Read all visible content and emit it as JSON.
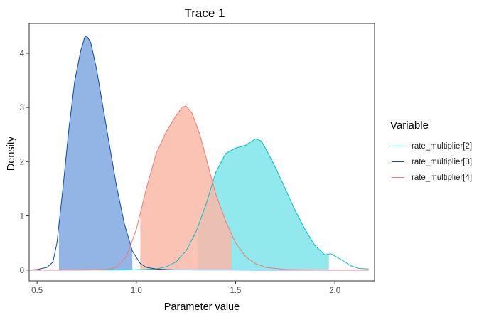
{
  "chart_data": {
    "type": "area",
    "title": "Trace 1",
    "xlabel": "Parameter value",
    "ylabel": "Density",
    "xlim": [
      0.46,
      2.2
    ],
    "ylim": [
      -0.2,
      4.55
    ],
    "x_ticks": [
      "0.5",
      "1.0",
      "1.5",
      "2.0"
    ],
    "x_tick_values": [
      0.5,
      1.0,
      1.5,
      2.0
    ],
    "y_ticks": [
      "0",
      "1",
      "2",
      "3",
      "4"
    ],
    "y_tick_values": [
      0,
      1,
      2,
      3,
      4
    ],
    "grid": false,
    "legend_title": "Variable",
    "legend_position": "right",
    "series": [
      {
        "name": "rate_multiplier[2]",
        "line_color": "#00BFC4",
        "fill_color": "#7FE5EA",
        "credible_interval": [
          1.31,
          1.97
        ],
        "x": [
          0.86,
          0.95,
          1.05,
          1.1,
          1.15,
          1.2,
          1.25,
          1.3,
          1.35,
          1.4,
          1.45,
          1.5,
          1.55,
          1.6,
          1.63,
          1.65,
          1.7,
          1.75,
          1.8,
          1.85,
          1.9,
          1.95,
          1.98,
          2.02,
          2.08,
          2.12,
          2.17
        ],
        "y": [
          0.0,
          0.002,
          0.01,
          0.02,
          0.06,
          0.15,
          0.35,
          0.7,
          1.2,
          1.8,
          2.15,
          2.25,
          2.3,
          2.42,
          2.38,
          2.25,
          1.9,
          1.5,
          1.1,
          0.75,
          0.45,
          0.28,
          0.3,
          0.22,
          0.08,
          0.03,
          0.02
        ]
      },
      {
        "name": "rate_multiplier[3]",
        "line_color": "#0B4DA2",
        "fill_color": "#7FA8E2",
        "credible_interval": [
          0.61,
          0.98
        ],
        "x": [
          0.5,
          0.55,
          0.58,
          0.6,
          0.63,
          0.66,
          0.69,
          0.72,
          0.74,
          0.75,
          0.77,
          0.8,
          0.83,
          0.86,
          0.9,
          0.94,
          0.98,
          1.02,
          1.05,
          1.1,
          1.15,
          1.2,
          1.3,
          1.4,
          1.5,
          1.6,
          1.68
        ],
        "y": [
          0.01,
          0.05,
          0.15,
          0.5,
          1.5,
          2.6,
          3.5,
          4.05,
          4.3,
          4.32,
          4.2,
          3.7,
          3.05,
          2.4,
          1.55,
          0.85,
          0.35,
          0.12,
          0.05,
          0.02,
          0.01,
          0.004,
          0.002,
          0.001,
          0.001,
          0.0,
          0.0
        ]
      },
      {
        "name": "rate_multiplier[4]",
        "line_color": "#F8766D",
        "fill_color": "#F9B9A7",
        "credible_interval": [
          1.02,
          1.48
        ],
        "x": [
          0.5,
          0.7,
          0.85,
          0.9,
          0.95,
          1.0,
          1.05,
          1.1,
          1.15,
          1.2,
          1.23,
          1.25,
          1.28,
          1.32,
          1.36,
          1.4,
          1.45,
          1.5,
          1.55,
          1.6,
          1.65,
          1.75,
          1.9,
          2.05,
          2.17
        ],
        "y": [
          0.0,
          0.0,
          0.01,
          0.05,
          0.25,
          0.75,
          1.5,
          2.15,
          2.55,
          2.85,
          3.0,
          3.03,
          2.9,
          2.5,
          1.95,
          1.4,
          0.9,
          0.5,
          0.25,
          0.12,
          0.05,
          0.01,
          0.0,
          0.0,
          0.0
        ]
      }
    ]
  }
}
